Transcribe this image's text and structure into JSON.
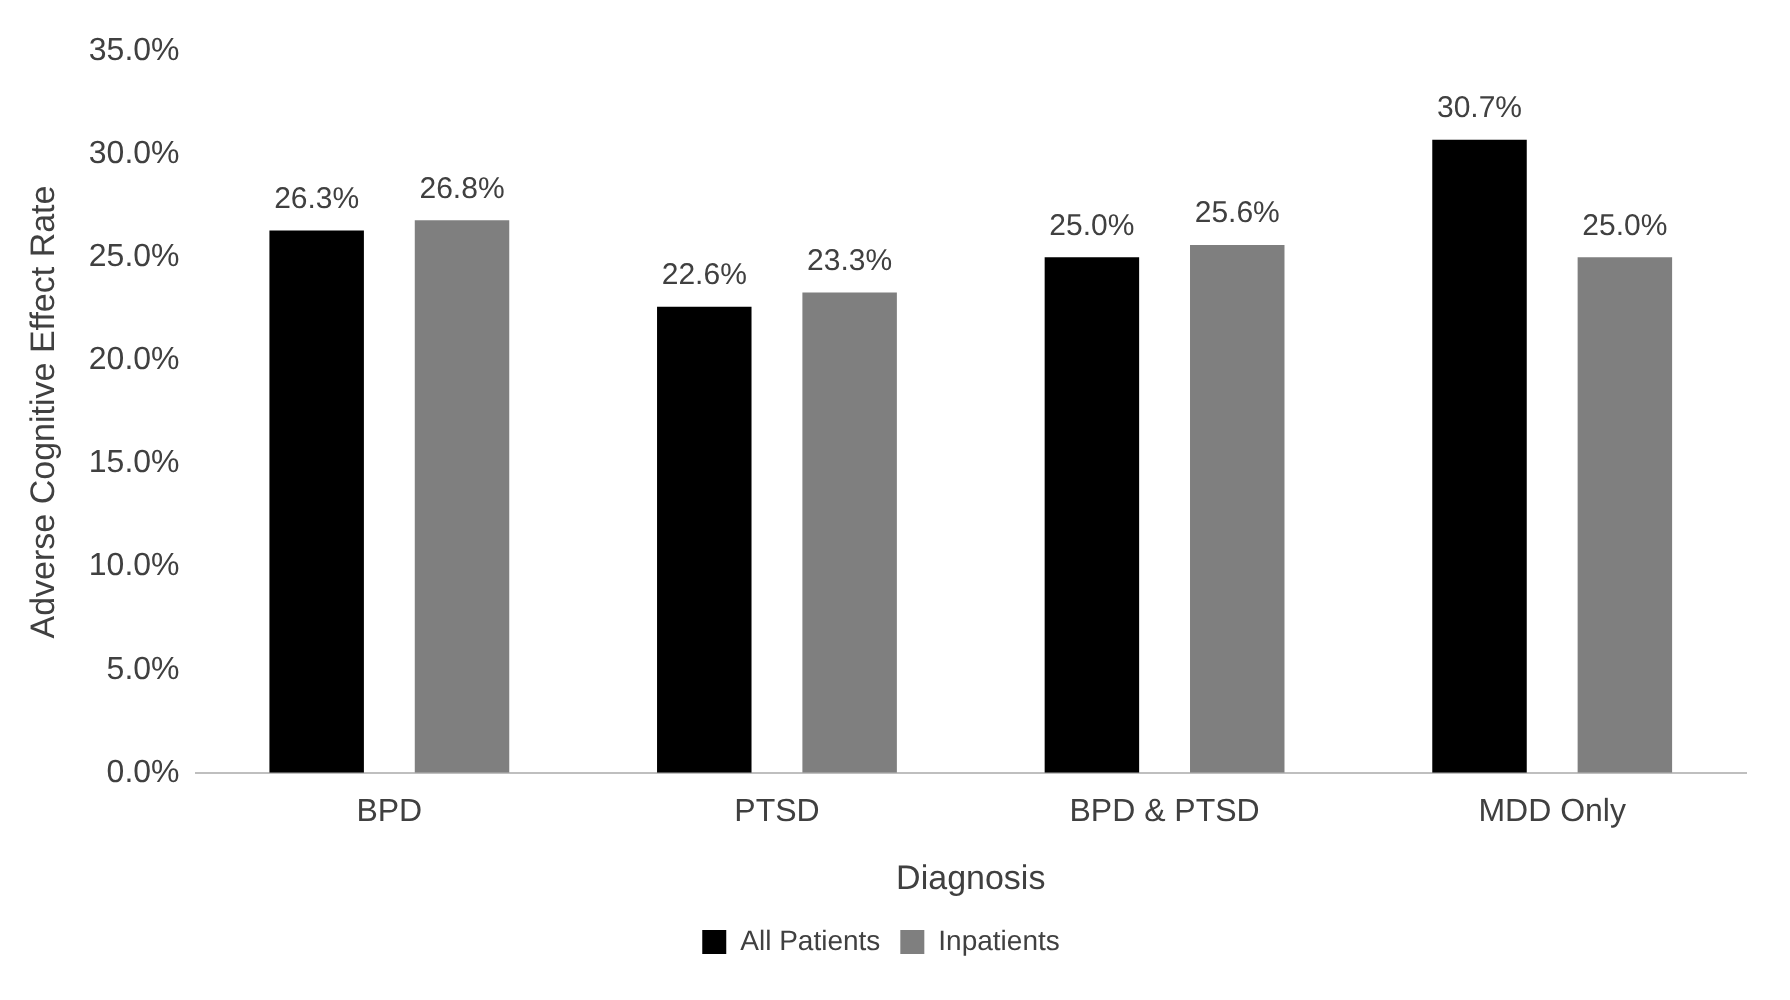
{
  "chart_data": {
    "type": "bar",
    "xlabel": "Diagnosis",
    "ylabel": "Adverse Cognitive Effect Rate",
    "categories": [
      "BPD",
      "PTSD",
      "BPD & PTSD",
      "MDD Only"
    ],
    "series": [
      {
        "name": "All Patients",
        "color": "#000000",
        "values": [
          26.3,
          22.6,
          25.0,
          30.7
        ],
        "value_labels": [
          "26.3%",
          "22.6%",
          "25.0%",
          "30.7%"
        ]
      },
      {
        "name": "Inpatients",
        "color": "#7f7f7f",
        "values": [
          26.8,
          23.3,
          25.6,
          25.0
        ],
        "value_labels": [
          "26.8%",
          "23.3%",
          "25.6%",
          "25.0%"
        ]
      }
    ],
    "ylim": [
      0,
      35
    ],
    "yticks": [
      {
        "value": 0,
        "label": "0.0%"
      },
      {
        "value": 5,
        "label": "5.0%"
      },
      {
        "value": 10,
        "label": "10.0%"
      },
      {
        "value": 15,
        "label": "15.0%"
      },
      {
        "value": 20,
        "label": "20.0%"
      },
      {
        "value": 25,
        "label": "25.0%"
      },
      {
        "value": 30,
        "label": "30.0%"
      },
      {
        "value": 35,
        "label": "35.0%"
      }
    ],
    "grid": false,
    "legend": "bottom"
  }
}
